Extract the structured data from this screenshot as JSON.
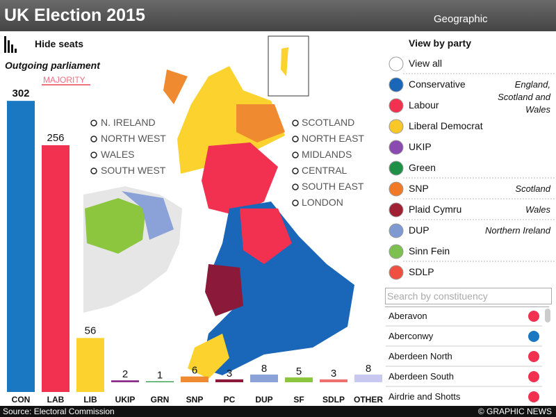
{
  "header": {
    "title": "UK Election 2015",
    "view_label": "Geographic"
  },
  "controls": {
    "hide_seats": "Hide seats",
    "view_by_party": "View by party"
  },
  "chart_data": {
    "type": "bar",
    "title": "Outgoing parliament",
    "annotation": "MAJORITY",
    "categories": [
      "CON",
      "LAB",
      "LIB",
      "UKIP",
      "GRN",
      "SNP",
      "PC",
      "DUP",
      "SF",
      "SDLP",
      "OTHER"
    ],
    "values": [
      302,
      256,
      56,
      2,
      1,
      6,
      3,
      8,
      5,
      3,
      8
    ],
    "colors": [
      "#1a78c2",
      "#f2304f",
      "#fcd22e",
      "#8a2d8a",
      "#2e9e4a",
      "#f08a30",
      "#8b1a3a",
      "#8aa2d8",
      "#8cc63f",
      "#f07070",
      "#c8c8f0"
    ]
  },
  "regions_left": [
    "N. IRELAND",
    "NORTH WEST",
    "WALES",
    "SOUTH WEST"
  ],
  "regions_right": [
    "SCOTLAND",
    "NORTH EAST",
    "MIDLANDS",
    "CENTRAL",
    "SOUTH EAST",
    "LONDON"
  ],
  "parties": [
    {
      "name": "View all",
      "color": "#ffffff"
    },
    {
      "name": "Conservative",
      "color": "#1a66b8"
    },
    {
      "name": "Labour",
      "color": "#f2304f"
    },
    {
      "name": "Liberal Democrat",
      "color": "#f8c828"
    },
    {
      "name": "UKIP",
      "color": "#8a4ab0"
    },
    {
      "name": "Green",
      "color": "#1e9048"
    },
    {
      "name": "SNP",
      "color": "#f07a28"
    },
    {
      "name": "Plaid Cymru",
      "color": "#a02034"
    },
    {
      "name": "DUP",
      "color": "#7f9ad0"
    },
    {
      "name": "Sinn Fein",
      "color": "#7cc050"
    },
    {
      "name": "SDLP",
      "color": "#f05040"
    }
  ],
  "party_notes": [
    {
      "text": "England, Scotland and Wales",
      "row": 1
    },
    {
      "text": "Scotland",
      "row": 6
    },
    {
      "text": "Wales",
      "row": 7
    },
    {
      "text": "Northern Ireland",
      "row": 8
    }
  ],
  "search_placeholder": "Search by constituency",
  "constituencies": [
    {
      "name": "Aberavon",
      "color": "#f2304f"
    },
    {
      "name": "Aberconwy",
      "color": "#1a78c2"
    },
    {
      "name": "Aberdeen North",
      "color": "#f2304f"
    },
    {
      "name": "Aberdeen South",
      "color": "#f2304f"
    },
    {
      "name": "Airdrie and Shotts",
      "color": "#f2304f"
    }
  ],
  "footer": {
    "source": "Source: Electoral Commission",
    "credit": "© GRAPHIC NEWS"
  }
}
